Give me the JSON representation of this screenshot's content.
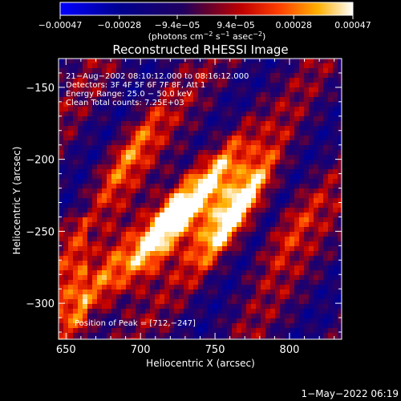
{
  "chart_data": {
    "type": "heatmap",
    "title": "Reconstructed RHESSI Image",
    "xlabel": "Heliocentric X (arcsec)",
    "ylabel": "Heliocentric Y (arcsec)",
    "xlim": [
      645,
      835
    ],
    "ylim": [
      -325,
      -130
    ],
    "x_ticks": [
      650,
      700,
      750,
      800
    ],
    "y_ticks": [
      -150,
      -200,
      -250,
      -300
    ],
    "x_tick_labels": [
      "650",
      "700",
      "750",
      "800"
    ],
    "y_tick_labels": [
      "−150",
      "−200",
      "−250",
      "−300"
    ],
    "colorbar": {
      "ticks": [
        -0.00047,
        -0.00028,
        -9.4e-05,
        9.4e-05,
        0.00028,
        0.00047
      ],
      "tick_labels": [
        "−0.00047",
        "−0.00028",
        "−9.4e−05",
        "9.4e−05",
        "0.00028",
        "0.00047"
      ],
      "unit_prefix": "(photons cm",
      "unit_exp1": "−2",
      "unit_mid": " s",
      "unit_exp2": "−1",
      "unit_mid2": " asec",
      "unit_exp3": "−2",
      "unit_suffix": ")"
    },
    "annotation_lines": [
      "21−Aug−2002 08:10:12.000 to 08:16:12.000",
      "Detectors: 3F 4F 5F 6F 7F 8F, Att 1",
      "Energy Range: 25.0 − 50.0 keV",
      "Clean     Total counts: 7.25E+03"
    ],
    "peak_label": "Position of Peak = [712,−247]",
    "peak_position": [
      712,
      -247
    ],
    "ridges": [
      {
        "x": 672,
        "y": -285,
        "amp": 0.55
      },
      {
        "x": 712,
        "y": -247,
        "amp": 1.0
      },
      {
        "x": 745,
        "y": -215,
        "amp": 0.7
      },
      {
        "x": 762,
        "y": -235,
        "amp": 0.85
      },
      {
        "x": 690,
        "y": -195,
        "amp": 0.45
      },
      {
        "x": 800,
        "y": -245,
        "amp": 0.35
      }
    ]
  },
  "footer_date": "1−May−2022 06:19"
}
